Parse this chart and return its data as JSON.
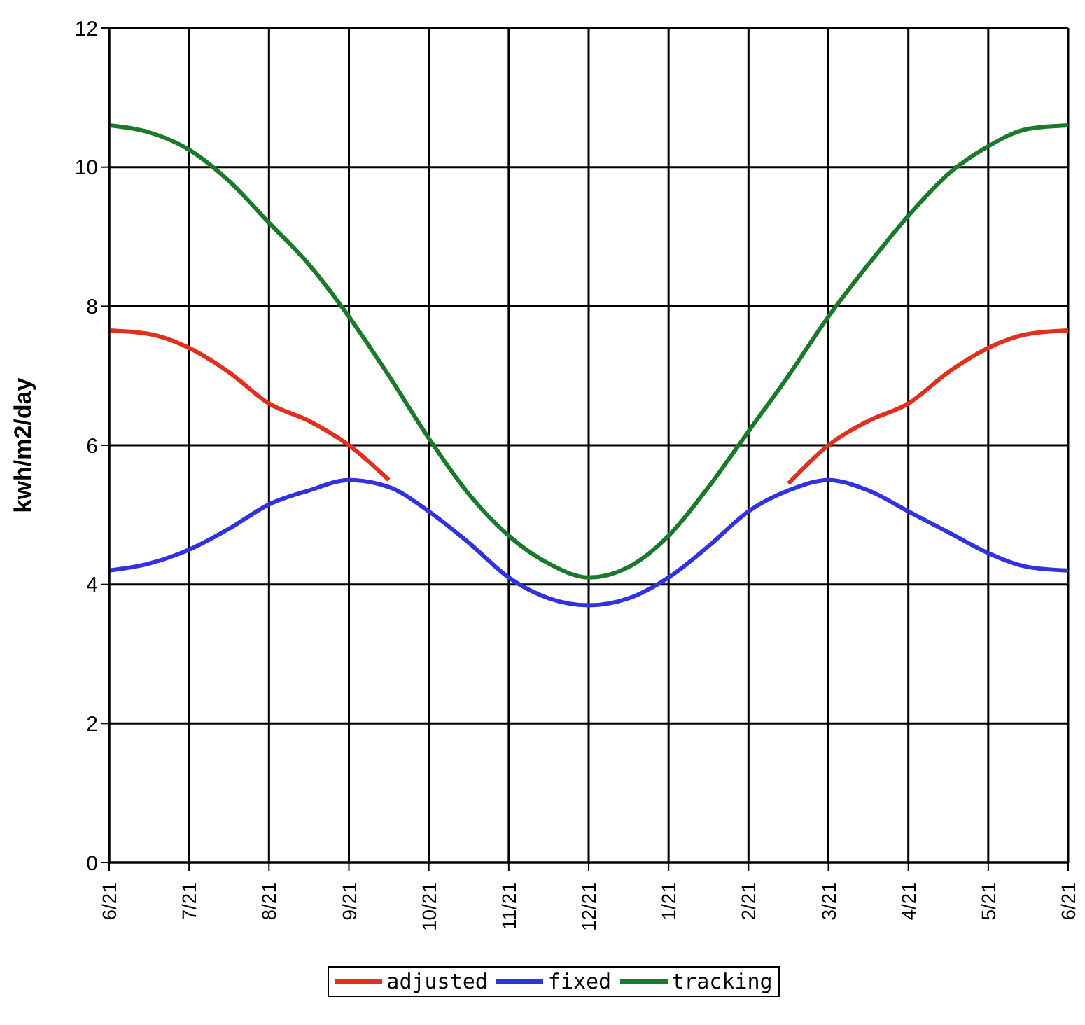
{
  "chart_data": {
    "type": "line",
    "ylabel": "kwh/m2/day",
    "categories": [
      "6/21",
      null,
      "7/21",
      null,
      "8/21",
      null,
      "9/21",
      null,
      "10/21",
      null,
      "11/21",
      null,
      "12/21",
      null,
      "1/21",
      null,
      "2/21",
      null,
      "3/21",
      null,
      "4/21",
      null,
      "5/21",
      null,
      "6/21"
    ],
    "ylim": [
      0,
      12
    ],
    "yticks": [
      0,
      2,
      4,
      6,
      8,
      10,
      12
    ],
    "grid": true,
    "legend": "bottom",
    "marker": "none",
    "line_style": "solid",
    "series": [
      {
        "name": "adjusted",
        "color": "#e0301e",
        "values": [
          7.65,
          7.6,
          7.4,
          7.05,
          6.6,
          6.35,
          6.0,
          5.5,
          null,
          null,
          null,
          null,
          null,
          null,
          null,
          null,
          null,
          5.45,
          6.0,
          6.35,
          6.6,
          7.05,
          7.4,
          7.6,
          7.65
        ]
      },
      {
        "name": "fixed",
        "color": "#3333dd",
        "values": [
          4.2,
          4.3,
          4.5,
          4.8,
          5.15,
          5.35,
          5.5,
          5.4,
          5.05,
          4.6,
          4.1,
          3.8,
          3.7,
          3.8,
          4.1,
          4.55,
          5.05,
          5.35,
          5.5,
          5.35,
          5.05,
          4.75,
          4.45,
          4.25,
          4.2
        ]
      },
      {
        "name": "tracking",
        "color": "#1a7a2a",
        "values": [
          10.6,
          10.5,
          10.25,
          9.8,
          9.2,
          8.6,
          7.85,
          7.0,
          6.1,
          5.3,
          4.7,
          4.3,
          4.1,
          4.25,
          4.7,
          5.4,
          6.2,
          7.0,
          7.85,
          8.6,
          9.3,
          9.9,
          10.3,
          10.55,
          10.6
        ]
      }
    ]
  }
}
